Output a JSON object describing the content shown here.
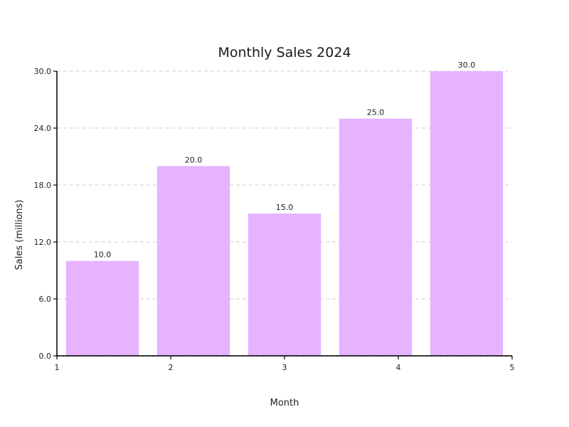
{
  "chart_data": {
    "type": "bar",
    "title": "Monthly Sales 2024",
    "xlabel": "Month",
    "ylabel": "Sales (millions)",
    "categories": [
      "1",
      "2",
      "3",
      "4",
      "5"
    ],
    "values": [
      10.0,
      20.0,
      15.0,
      25.0,
      30.0
    ],
    "data_labels": [
      "10.0",
      "20.0",
      "15.0",
      "25.0",
      "30.0"
    ],
    "x_ticks": [
      1,
      2,
      3,
      4,
      5
    ],
    "x_tick_labels": [
      "1",
      "2",
      "3",
      "4",
      "5"
    ],
    "xlim": [
      1,
      5
    ],
    "y_ticks": [
      0,
      6,
      12,
      18,
      24,
      30
    ],
    "y_tick_labels": [
      "0.0",
      "6.0",
      "12.0",
      "18.0",
      "24.0",
      "30.0"
    ],
    "ylim": [
      0,
      30
    ],
    "grid": true,
    "bar_color": "#e6b3ff"
  }
}
